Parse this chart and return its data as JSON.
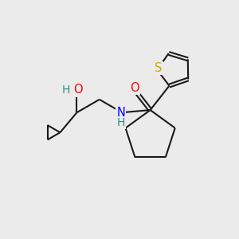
{
  "background_color": "#ebebeb",
  "line_color": "#1a1a1a",
  "bond_width": 1.5,
  "atom_colors": {
    "O": "#ff0000",
    "N": "#0000ff",
    "S": "#ccaa00",
    "teal": "#2e8b8b",
    "C": "#1a1a1a"
  },
  "font_size_atoms": 10.5,
  "figsize": [
    3.0,
    3.0
  ],
  "dpi": 100
}
